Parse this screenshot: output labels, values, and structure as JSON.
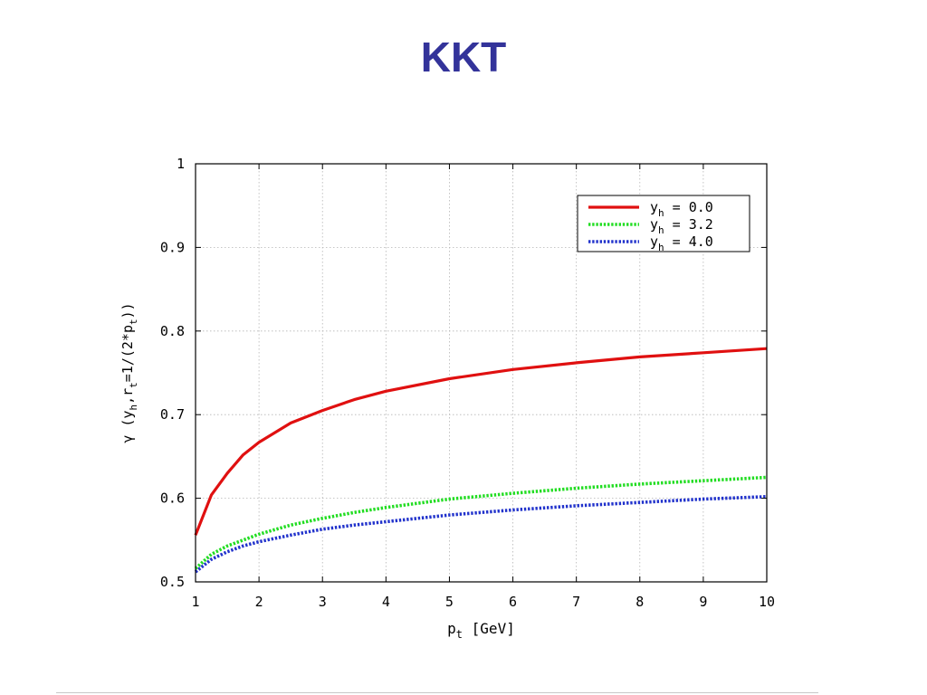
{
  "slide": {
    "title": "KKT"
  },
  "chart_data": {
    "type": "line",
    "xlabel_main": "p",
    "xlabel_sub": "t",
    "xlabel_rest": " [GeV]",
    "ylabel_parts": [
      {
        "t": "γ (y"
      },
      {
        "t": "h",
        "sub": true
      },
      {
        "t": ",r"
      },
      {
        "t": "t",
        "sub": true
      },
      {
        "t": "=1/(2*p"
      },
      {
        "t": "t",
        "sub": true
      },
      {
        "t": "))"
      }
    ],
    "xlim": [
      1,
      10
    ],
    "ylim": [
      0.5,
      1.0
    ],
    "xticks": [
      1,
      2,
      3,
      4,
      5,
      6,
      7,
      8,
      9,
      10
    ],
    "xtick_labels": [
      "1",
      "2",
      "3",
      "4",
      "5",
      "6",
      "7",
      "8",
      "9",
      "10"
    ],
    "yticks": [
      0.5,
      0.6,
      0.7,
      0.8,
      0.9,
      1.0
    ],
    "ytick_labels": [
      "0.5",
      "0.6",
      "0.7",
      "0.8",
      "0.9",
      "1"
    ],
    "grid": true,
    "legend_position": "top-right",
    "series": [
      {
        "label_main": "y",
        "label_sub": "h",
        "label_rest": " = 0.0",
        "color": "#e01010",
        "dash": "solid",
        "x": [
          1.0,
          1.25,
          1.5,
          1.75,
          2.0,
          2.5,
          3.0,
          3.5,
          4.0,
          5.0,
          6.0,
          7.0,
          8.0,
          9.0,
          10.0
        ],
        "y": [
          0.556,
          0.604,
          0.63,
          0.652,
          0.667,
          0.69,
          0.705,
          0.718,
          0.728,
          0.743,
          0.754,
          0.762,
          0.769,
          0.774,
          0.779
        ]
      },
      {
        "label_main": "y",
        "label_sub": "h",
        "label_rest": " = 3.2",
        "color": "#22dd22",
        "dash": "dotted",
        "x": [
          1.0,
          1.25,
          1.5,
          1.75,
          2.0,
          2.5,
          3.0,
          3.5,
          4.0,
          5.0,
          6.0,
          7.0,
          8.0,
          9.0,
          10.0
        ],
        "y": [
          0.516,
          0.533,
          0.543,
          0.55,
          0.557,
          0.568,
          0.576,
          0.583,
          0.589,
          0.599,
          0.606,
          0.612,
          0.617,
          0.621,
          0.625
        ]
      },
      {
        "label_main": "y",
        "label_sub": "h",
        "label_rest": " = 4.0",
        "color": "#2233cc",
        "dash": "dotted",
        "x": [
          1.0,
          1.25,
          1.5,
          1.75,
          2.0,
          2.5,
          3.0,
          3.5,
          4.0,
          5.0,
          6.0,
          7.0,
          8.0,
          9.0,
          10.0
        ],
        "y": [
          0.512,
          0.527,
          0.536,
          0.543,
          0.548,
          0.556,
          0.563,
          0.568,
          0.572,
          0.58,
          0.586,
          0.591,
          0.595,
          0.599,
          0.602
        ]
      }
    ]
  }
}
